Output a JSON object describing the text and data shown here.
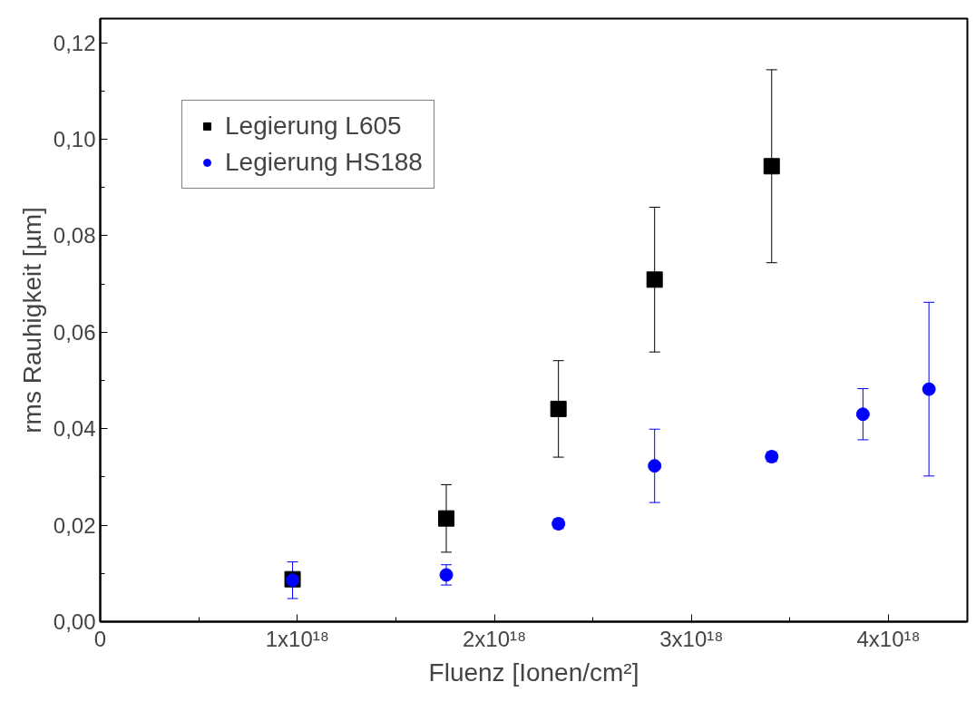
{
  "chart_data": {
    "type": "scatter",
    "xlabel": "Fluenz [Ionen/cm²]",
    "ylabel": "rms Rauhigkeit [µm]",
    "xlim": [
      0,
      4.4e+18
    ],
    "ylim": [
      0,
      0.125
    ],
    "xticks": [
      {
        "value": 0,
        "label": "0"
      },
      {
        "value": 5e+17,
        "label": null
      },
      {
        "value": 1e+18,
        "label": "1x10¹⁸"
      },
      {
        "value": 1.5e+18,
        "label": null
      },
      {
        "value": 2e+18,
        "label": "2x10¹⁸"
      },
      {
        "value": 2.5e+18,
        "label": null
      },
      {
        "value": 3e+18,
        "label": "3x10¹⁸"
      },
      {
        "value": 3.5e+18,
        "label": null
      },
      {
        "value": 4e+18,
        "label": "4x10¹⁸"
      }
    ],
    "yticks": [
      {
        "value": 0,
        "label": "0,00"
      },
      {
        "value": 0.01,
        "label": null
      },
      {
        "value": 0.02,
        "label": "0,02"
      },
      {
        "value": 0.03,
        "label": null
      },
      {
        "value": 0.04,
        "label": "0,04"
      },
      {
        "value": 0.05,
        "label": null
      },
      {
        "value": 0.06,
        "label": "0,06"
      },
      {
        "value": 0.07,
        "label": null
      },
      {
        "value": 0.08,
        "label": "0,08"
      },
      {
        "value": 0.09,
        "label": null
      },
      {
        "value": 0.1,
        "label": "0,10"
      },
      {
        "value": 0.11,
        "label": null
      },
      {
        "value": 0.12,
        "label": "0,12"
      }
    ],
    "grid": false,
    "legend": "top left",
    "series": [
      {
        "name": "Legierung L605",
        "color": "#000000",
        "marker": "square",
        "x": [
          9.76e+17,
          1.756e+18,
          2.325e+18,
          2.813e+18,
          3.407e+18
        ],
        "values": [
          0.0088,
          0.0214,
          0.0441,
          0.0709,
          0.0944
        ],
        "errors": [
          null,
          0.007,
          0.01,
          0.015,
          0.02
        ]
      },
      {
        "name": "Legierung HS188",
        "color": "#0000ff",
        "marker": "circle",
        "x": [
          9.76e+17,
          1.756e+18,
          2.325e+18,
          2.813e+18,
          3.407e+18,
          3.87e+18,
          4.205e+18
        ],
        "values": [
          0.0086,
          0.0097,
          0.0203,
          0.0323,
          0.0342,
          0.043,
          0.0482
        ],
        "errors": [
          0.0038,
          0.0021,
          0.001,
          0.0076,
          0.001,
          0.0053,
          0.018
        ]
      }
    ]
  }
}
